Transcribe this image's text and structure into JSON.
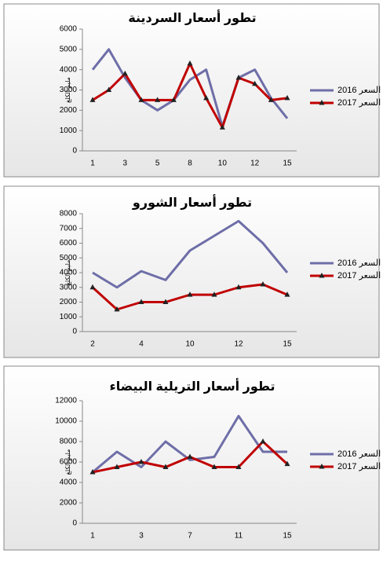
{
  "chart_data": [
    {
      "type": "line",
      "title": "تطور أسعار السردينة",
      "y_label": "مليم الكلغ",
      "categories": [
        "1",
        null,
        "3",
        null,
        "5",
        null,
        "8",
        null,
        "10",
        null,
        "12",
        null,
        "15"
      ],
      "series": [
        {
          "name": "السعر 2016",
          "color": "#6e6ea8",
          "values": [
            4000,
            5000,
            3600,
            2500,
            2000,
            2500,
            3500,
            4000,
            1200,
            3600,
            4000,
            2600,
            1600
          ]
        },
        {
          "name": "السعر 2017",
          "color": "#c00000",
          "marker": "triangle",
          "values": [
            2500,
            3000,
            3800,
            2500,
            2500,
            2500,
            4300,
            2600,
            1150,
            3600,
            3300,
            2500,
            2600
          ]
        }
      ],
      "ylim": [
        0,
        6000
      ],
      "yticks": [
        0,
        1000,
        2000,
        3000,
        4000,
        5000,
        6000
      ],
      "grid": false,
      "legend": "right"
    },
    {
      "type": "line",
      "title": "تطور أسعار الشورو",
      "y_label": "مليم الكلغ",
      "categories": [
        "2",
        null,
        "4",
        null,
        "10",
        null,
        "12",
        null,
        "15"
      ],
      "series": [
        {
          "name": "السعر 2016",
          "color": "#6e6ea8",
          "values": [
            4000,
            3000,
            4100,
            3500,
            5500,
            6500,
            7500,
            6000,
            4000
          ]
        },
        {
          "name": "السعر 2017",
          "color": "#c00000",
          "marker": "triangle",
          "values": [
            3000,
            1500,
            2000,
            2000,
            2500,
            2500,
            3000,
            3200,
            2500
          ]
        }
      ],
      "ylim": [
        0,
        8000
      ],
      "yticks": [
        0,
        1000,
        2000,
        3000,
        4000,
        5000,
        6000,
        7000,
        8000
      ],
      "grid": false,
      "legend": "right"
    },
    {
      "type": "line",
      "title": "تطور أسعار التريلية البيضاء",
      "y_label": "مليم الكلغ",
      "categories": [
        "1",
        null,
        "3",
        null,
        "7",
        null,
        "11",
        null,
        "15"
      ],
      "series": [
        {
          "name": "السعر 2016",
          "color": "#6e6ea8",
          "values": [
            5000,
            7000,
            5500,
            8000,
            6200,
            6500,
            10500,
            7000,
            7000
          ]
        },
        {
          "name": "السعر 2017",
          "color": "#c00000",
          "marker": "triangle",
          "values": [
            5000,
            5500,
            6000,
            5500,
            6500,
            5500,
            5500,
            8000,
            5800
          ]
        }
      ],
      "ylim": [
        0,
        12000
      ],
      "yticks": [
        0,
        2000,
        4000,
        6000,
        8000,
        10000,
        12000
      ],
      "grid": false,
      "legend": "right"
    }
  ]
}
